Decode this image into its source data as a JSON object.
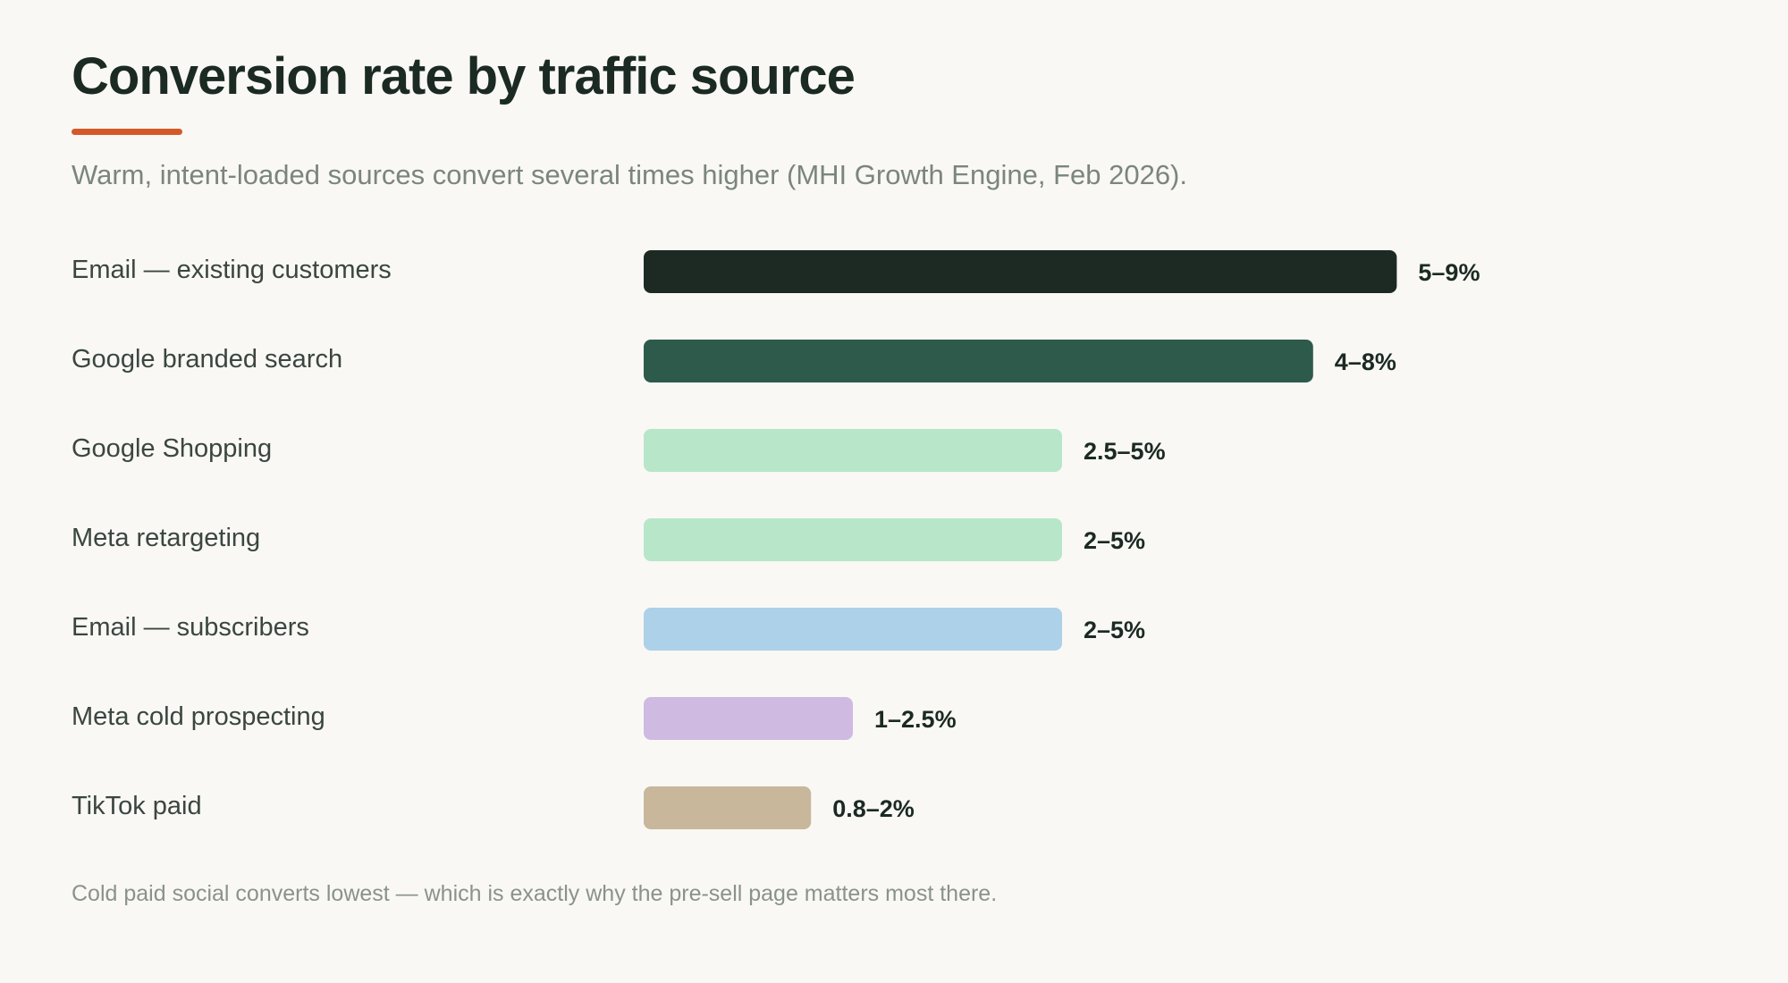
{
  "colors": {
    "accent_rule": "#d4592a"
  },
  "footnote": "Cold paid social converts lowest — which is exactly why the pre-sell page matters most there.",
  "chart_data": {
    "type": "bar",
    "orientation": "horizontal",
    "title": "Conversion rate by traffic source",
    "subtitle": "Warm, intent-loaded sources convert several times higher (MHI Growth Engine, Feb 2026).",
    "xlabel": "",
    "ylabel": "",
    "unit": "%",
    "xlim": [
      0,
      12
    ],
    "grid": false,
    "legend": "none",
    "categories": [
      "Email — existing customers",
      "Google branded search",
      "Google Shopping",
      "Meta retargeting",
      "Email — subscribers",
      "Meta cold prospecting",
      "TikTok paid"
    ],
    "values": [
      9,
      8,
      5,
      5,
      5,
      2.5,
      2
    ],
    "ranges": [
      [
        5,
        9
      ],
      [
        4,
        8
      ],
      [
        2.5,
        5
      ],
      [
        2,
        5
      ],
      [
        2,
        5
      ],
      [
        1,
        2.5
      ],
      [
        0.8,
        2
      ]
    ],
    "value_labels": [
      "5–9%",
      "4–8%",
      "2.5–5%",
      "2–5%",
      "2–5%",
      "1–2.5%",
      "0.8–2%"
    ],
    "bar_colors": [
      "#1c2a23",
      "#2d5a4b",
      "#b8e6c9",
      "#b8e6c9",
      "#acd1e8",
      "#cfbae2",
      "#c8b79b"
    ]
  }
}
